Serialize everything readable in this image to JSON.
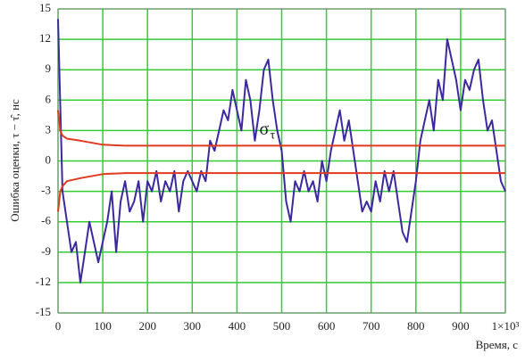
{
  "chart_data": {
    "type": "line",
    "xlabel": "Время, с",
    "ylabel": "Ошибка оценки, τ − τ̂, нс",
    "annotation": {
      "text": "σ",
      "subscript": "τ",
      "x": 450,
      "y": 3
    },
    "xlim": [
      0,
      1000
    ],
    "ylim": [
      -15,
      15
    ],
    "xticks": [
      0,
      100,
      200,
      300,
      400,
      500,
      600,
      700,
      800,
      900,
      {
        "value": 1000,
        "label": "1×10³"
      }
    ],
    "yticks": [
      -15,
      -12,
      -9,
      -6,
      -3,
      0,
      3,
      6,
      9,
      12,
      15
    ],
    "grid": true,
    "grid_color": "#33cc33",
    "series": [
      {
        "color": "#3a2a9e",
        "x": [
          0,
          10,
          20,
          30,
          40,
          50,
          60,
          70,
          80,
          90,
          100,
          110,
          120,
          130,
          140,
          150,
          160,
          170,
          180,
          190,
          200,
          210,
          220,
          230,
          240,
          250,
          260,
          270,
          280,
          290,
          300,
          310,
          320,
          330,
          340,
          350,
          360,
          370,
          380,
          390,
          400,
          410,
          420,
          430,
          440,
          450,
          460,
          470,
          480,
          490,
          500,
          510,
          520,
          530,
          540,
          550,
          560,
          570,
          580,
          590,
          600,
          610,
          620,
          630,
          640,
          650,
          660,
          670,
          680,
          690,
          700,
          710,
          720,
          730,
          740,
          750,
          760,
          770,
          780,
          790,
          800,
          810,
          820,
          830,
          840,
          850,
          860,
          870,
          880,
          890,
          900,
          910,
          920,
          930,
          940,
          950,
          960,
          970,
          980,
          990,
          1000
        ],
        "values": [
          14,
          -3,
          -6,
          -9,
          -8,
          -12,
          -9,
          -6,
          -8,
          -10,
          -8,
          -6,
          -3,
          -9,
          -4,
          -2,
          -5,
          -4,
          -2,
          -6,
          -2,
          -3,
          -1,
          -4,
          -2,
          -3,
          -1,
          -5,
          -2,
          -1,
          -2,
          -3,
          -1,
          -2,
          2,
          1,
          3,
          5,
          4,
          7,
          5,
          3,
          8,
          6,
          2,
          5,
          9,
          10,
          6,
          3,
          1,
          -4,
          -6,
          -2,
          -3,
          -1,
          -3,
          -2,
          -4,
          0,
          -2,
          1,
          3,
          5,
          2,
          4,
          1,
          -2,
          -5,
          -4,
          -5,
          -2,
          -4,
          -1,
          -3,
          -1,
          -4,
          -7,
          -8,
          -5,
          -2,
          2,
          4,
          6,
          3,
          8,
          6,
          12,
          10,
          8,
          5,
          8,
          7,
          9,
          10,
          6,
          3,
          4,
          1,
          -2,
          -3
        ]
      },
      {
        "color": "#e03a20",
        "x": [
          0,
          5,
          10,
          20,
          50,
          100,
          150,
          1000
        ],
        "values": [
          5,
          3,
          2.5,
          2.2,
          2,
          1.6,
          1.5,
          1.5
        ]
      },
      {
        "color": "#e03a20",
        "x": [
          0,
          5,
          10,
          20,
          50,
          100,
          150,
          1000
        ],
        "values": [
          -5,
          -3,
          -2.5,
          -2,
          -1.7,
          -1.3,
          -1.2,
          -1.2
        ]
      }
    ]
  }
}
